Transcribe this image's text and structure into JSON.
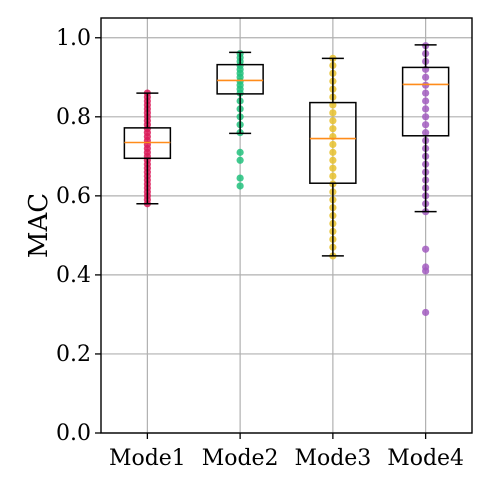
{
  "chart_data": {
    "type": "boxplot",
    "title": "",
    "xlabel": "",
    "ylabel": "MAC",
    "ylim": [
      0.0,
      1.05
    ],
    "yticks": [
      0.0,
      0.2,
      0.4,
      0.6,
      0.8,
      1.0
    ],
    "ytick_labels": [
      "0.0",
      "0.2",
      "0.4",
      "0.6",
      "0.8",
      "1.0"
    ],
    "grid": true,
    "categories": [
      "Mode1",
      "Mode2",
      "Mode3",
      "Mode4"
    ],
    "boxes": [
      {
        "name": "Mode1",
        "color": "#dc1c5a",
        "whisker_low": 0.58,
        "q1": 0.695,
        "median": 0.735,
        "q3": 0.772,
        "whisker_high": 0.86,
        "points": [
          0.58,
          0.59,
          0.6,
          0.61,
          0.62,
          0.63,
          0.64,
          0.65,
          0.66,
          0.67,
          0.68,
          0.69,
          0.7,
          0.71,
          0.72,
          0.73,
          0.74,
          0.75,
          0.76,
          0.77,
          0.78,
          0.79,
          0.8,
          0.81,
          0.82,
          0.83,
          0.84,
          0.85,
          0.86
        ]
      },
      {
        "name": "Mode2",
        "color": "#21c17c",
        "whisker_low": 0.758,
        "q1": 0.858,
        "median": 0.892,
        "q3": 0.932,
        "whisker_high": 0.963,
        "points": [
          0.625,
          0.645,
          0.69,
          0.71,
          0.76,
          0.78,
          0.8,
          0.82,
          0.84,
          0.86,
          0.87,
          0.88,
          0.89,
          0.9,
          0.91,
          0.92,
          0.93,
          0.94,
          0.95,
          0.96
        ]
      },
      {
        "name": "Mode3",
        "color": "#e8c12b",
        "whisker_low": 0.448,
        "q1": 0.632,
        "median": 0.745,
        "q3": 0.836,
        "whisker_high": 0.948,
        "points": [
          0.448,
          0.47,
          0.49,
          0.51,
          0.53,
          0.55,
          0.57,
          0.59,
          0.61,
          0.63,
          0.65,
          0.67,
          0.69,
          0.71,
          0.73,
          0.75,
          0.77,
          0.79,
          0.81,
          0.83,
          0.85,
          0.87,
          0.89,
          0.91,
          0.93,
          0.948
        ]
      },
      {
        "name": "Mode4",
        "color": "#a25cc0",
        "whisker_low": 0.56,
        "q1": 0.752,
        "median": 0.882,
        "q3": 0.925,
        "whisker_high": 0.982,
        "points": [
          0.305,
          0.41,
          0.42,
          0.465,
          0.56,
          0.58,
          0.6,
          0.62,
          0.64,
          0.66,
          0.68,
          0.7,
          0.72,
          0.74,
          0.76,
          0.78,
          0.8,
          0.82,
          0.84,
          0.86,
          0.88,
          0.9,
          0.92,
          0.94,
          0.96,
          0.98
        ]
      }
    ],
    "median_color": "#ff8c1a"
  }
}
